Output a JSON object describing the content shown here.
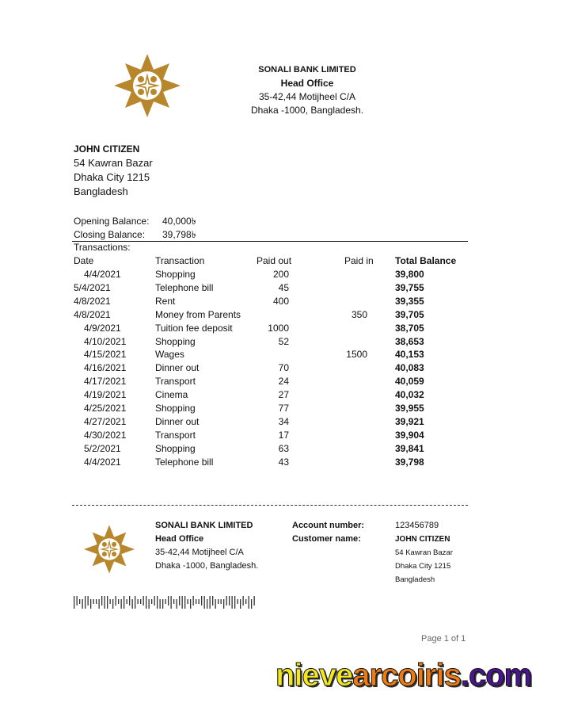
{
  "bank": {
    "name": "SONALI BANK LIMITED",
    "office": "Head Office",
    "address1": "35-42,44 Motijheel C/A",
    "address2": "Dhaka -1000, Bangladesh.",
    "logo_color": "#B8862B"
  },
  "customer": {
    "name": "JOHN CITIZEN",
    "address1": "54 Kawran Bazar",
    "address2": "Dhaka City 1215",
    "address3": "Bangladesh"
  },
  "summary": {
    "opening_label": "Opening Balance:",
    "opening_value": "40,000৳",
    "closing_label": "Closing Balance:",
    "closing_value": "39,798৳",
    "transactions_label": "Transactions:"
  },
  "table": {
    "headers": [
      "Date",
      "Transaction",
      "Paid out",
      "Paid in",
      "Total Balance"
    ],
    "rows": [
      {
        "date": "4/4/2021",
        "indent": true,
        "desc": "Shopping",
        "out": "200",
        "in": "",
        "bal": "39,800"
      },
      {
        "date": "5/4/2021",
        "indent": false,
        "desc": "Telephone bill",
        "out": "45",
        "in": "",
        "bal": "39,755"
      },
      {
        "date": "4/8/2021",
        "indent": false,
        "desc": "Rent",
        "out": "400",
        "in": "",
        "bal": "39,355"
      },
      {
        "date": "4/8/2021",
        "indent": false,
        "desc": "Money from Parents",
        "out": "",
        "in": "350",
        "bal": "39,705"
      },
      {
        "date": "4/9/2021",
        "indent": true,
        "desc": "Tuition fee deposit",
        "out": "1000",
        "in": "",
        "bal": "38,705"
      },
      {
        "date": "4/10/2021",
        "indent": true,
        "desc": "Shopping",
        "out": "52",
        "in": "",
        "bal": "38,653"
      },
      {
        "date": "4/15/2021",
        "indent": true,
        "desc": "Wages",
        "out": "",
        "in": "1500",
        "bal": "40,153"
      },
      {
        "date": "4/16/2021",
        "indent": true,
        "desc": "Dinner out",
        "out": "70",
        "in": "",
        "bal": "40,083"
      },
      {
        "date": "4/17/2021",
        "indent": true,
        "desc": "Transport",
        "out": "24",
        "in": "",
        "bal": "40,059"
      },
      {
        "date": "4/19/2021",
        "indent": true,
        "desc": "Cinema",
        "out": "27",
        "in": "",
        "bal": "40,032"
      },
      {
        "date": "4/25/2021",
        "indent": true,
        "desc": "Shopping",
        "out": "77",
        "in": "",
        "bal": "39,955"
      },
      {
        "date": "4/27/2021",
        "indent": true,
        "desc": "Dinner out",
        "out": "34",
        "in": "",
        "bal": "39,921"
      },
      {
        "date": "4/30/2021",
        "indent": true,
        "desc": "Transport",
        "out": "17",
        "in": "",
        "bal": "39,904"
      },
      {
        "date": "5/2/2021",
        "indent": true,
        "desc": "Shopping",
        "out": "63",
        "in": "",
        "bal": "39,841"
      },
      {
        "date": "4/4/2021",
        "indent": true,
        "desc": "Telephone bill",
        "out": "43",
        "in": "",
        "bal": "39,798"
      }
    ]
  },
  "footer": {
    "account_label": "Account number:",
    "account_value": "123456789",
    "customer_label": "Customer name:"
  },
  "page_indicator": "Page 1 of 1",
  "watermark": {
    "part1": "nieve",
    "part2": "arcoiris",
    "part3": ".com",
    "colors": [
      "#F2E61C",
      "#EE7A12",
      "#4A1590"
    ]
  }
}
